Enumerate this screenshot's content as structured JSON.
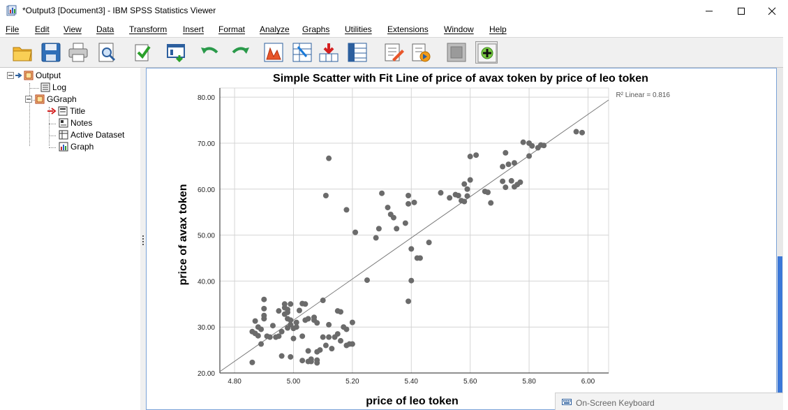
{
  "window": {
    "title": "*Output3 [Document3] - IBM SPSS Statistics Viewer"
  },
  "menu": [
    "File",
    "Edit",
    "View",
    "Data",
    "Transform",
    "Insert",
    "Format",
    "Analyze",
    "Graphs",
    "Utilities",
    "Extensions",
    "Window",
    "Help"
  ],
  "toolbar_icons": [
    "open-icon",
    "save-icon",
    "print-icon",
    "print-preview-icon",
    "export-icon",
    "recall-dialog-icon",
    "undo-icon",
    "redo-icon",
    "goto-data-icon",
    "goto-case-icon",
    "goto-variable-icon",
    "variables-icon",
    "select-cases-icon",
    "designate-window-icon",
    "hide-icon",
    "show-icon",
    "promote-icon"
  ],
  "outline": {
    "root": "Output",
    "log": "Log",
    "ggraph": "GGraph",
    "title": "Title",
    "notes": "Notes",
    "active_dataset": "Active Dataset",
    "graph": "Graph"
  },
  "chart_data": {
    "type": "scatter",
    "title": "Simple Scatter with Fit Line of price of avax token by price of leo token",
    "xlabel": "price of leo token",
    "ylabel": "price of avax token",
    "fit_label": "R² Linear = 0.816",
    "xlim": [
      4.75,
      6.07
    ],
    "ylim": [
      20,
      82
    ],
    "x_ticks": [
      "4.80",
      "5.00",
      "5.20",
      "5.40",
      "5.60",
      "5.80",
      "6.00"
    ],
    "y_ticks": [
      "20.00",
      "30.00",
      "40.00",
      "50.00",
      "60.00",
      "70.00",
      "80.00"
    ],
    "fit_line": {
      "x": [
        4.75,
        6.07
      ],
      "y": [
        20.3,
        79.4
      ]
    },
    "grid": true,
    "point_color": "#6b6b6b",
    "points": [
      [
        4.86,
        22.3
      ],
      [
        4.86,
        29.0
      ],
      [
        4.87,
        31.3
      ],
      [
        4.87,
        28.6
      ],
      [
        4.88,
        30.0
      ],
      [
        4.88,
        28.1
      ],
      [
        4.89,
        26.3
      ],
      [
        4.89,
        29.5
      ],
      [
        4.9,
        31.8
      ],
      [
        4.9,
        34.0
      ],
      [
        4.9,
        32.5
      ],
      [
        4.9,
        36.0
      ],
      [
        4.91,
        28.0
      ],
      [
        4.92,
        27.8
      ],
      [
        4.93,
        30.3
      ],
      [
        4.94,
        27.8
      ],
      [
        4.95,
        28.0
      ],
      [
        4.95,
        33.5
      ],
      [
        4.96,
        23.7
      ],
      [
        4.96,
        29.0
      ],
      [
        4.97,
        32.8
      ],
      [
        4.97,
        34.2
      ],
      [
        4.97,
        35.0
      ],
      [
        4.98,
        33.8
      ],
      [
        4.98,
        31.8
      ],
      [
        4.98,
        29.8
      ],
      [
        4.98,
        33.2
      ],
      [
        4.99,
        31.5
      ],
      [
        4.99,
        35.0
      ],
      [
        4.99,
        30.5
      ],
      [
        4.99,
        23.5
      ],
      [
        5.0,
        27.5
      ],
      [
        5.0,
        29.7
      ],
      [
        5.01,
        31.0
      ],
      [
        5.01,
        30.0
      ],
      [
        5.02,
        33.6
      ],
      [
        5.03,
        28.0
      ],
      [
        5.03,
        35.1
      ],
      [
        5.03,
        22.7
      ],
      [
        5.04,
        35.0
      ],
      [
        5.04,
        31.5
      ],
      [
        5.05,
        31.8
      ],
      [
        5.05,
        22.5
      ],
      [
        5.05,
        24.8
      ],
      [
        5.06,
        23.0
      ],
      [
        5.06,
        22.5
      ],
      [
        5.07,
        31.5
      ],
      [
        5.07,
        32.1
      ],
      [
        5.08,
        30.9
      ],
      [
        5.08,
        22.8
      ],
      [
        5.08,
        22.2
      ],
      [
        5.08,
        24.6
      ],
      [
        5.09,
        25.0
      ],
      [
        5.1,
        27.8
      ],
      [
        5.1,
        35.8
      ],
      [
        5.11,
        26.0
      ],
      [
        5.12,
        30.5
      ],
      [
        5.12,
        27.8
      ],
      [
        5.13,
        25.3
      ],
      [
        5.14,
        27.8
      ],
      [
        5.15,
        33.5
      ],
      [
        5.15,
        28.5
      ],
      [
        5.16,
        33.3
      ],
      [
        5.16,
        27.0
      ],
      [
        5.17,
        30.0
      ],
      [
        5.18,
        29.5
      ],
      [
        5.18,
        26.0
      ],
      [
        5.19,
        26.3
      ],
      [
        5.2,
        31.0
      ],
      [
        5.2,
        26.3
      ],
      [
        5.11,
        58.6
      ],
      [
        5.12,
        66.7
      ],
      [
        5.18,
        55.5
      ],
      [
        5.21,
        50.6
      ],
      [
        5.25,
        40.2
      ],
      [
        5.28,
        49.4
      ],
      [
        5.29,
        51.4
      ],
      [
        5.3,
        59.1
      ],
      [
        5.32,
        56.0
      ],
      [
        5.33,
        54.5
      ],
      [
        5.34,
        53.8
      ],
      [
        5.35,
        51.4
      ],
      [
        5.38,
        52.6
      ],
      [
        5.39,
        58.6
      ],
      [
        5.39,
        56.8
      ],
      [
        5.39,
        35.6
      ],
      [
        5.4,
        40.1
      ],
      [
        5.4,
        47.0
      ],
      [
        5.41,
        57.1
      ],
      [
        5.42,
        45.0
      ],
      [
        5.43,
        45.0
      ],
      [
        5.46,
        48.4
      ],
      [
        5.5,
        59.2
      ],
      [
        5.53,
        58.1
      ],
      [
        5.55,
        58.8
      ],
      [
        5.56,
        58.6
      ],
      [
        5.57,
        57.5
      ],
      [
        5.58,
        57.3
      ],
      [
        5.58,
        61.1
      ],
      [
        5.59,
        58.5
      ],
      [
        5.59,
        60.0
      ],
      [
        5.6,
        62.0
      ],
      [
        5.6,
        67.1
      ],
      [
        5.62,
        67.4
      ],
      [
        5.65,
        59.5
      ],
      [
        5.66,
        59.3
      ],
      [
        5.67,
        57.0
      ],
      [
        5.71,
        61.7
      ],
      [
        5.71,
        64.9
      ],
      [
        5.72,
        60.4
      ],
      [
        5.72,
        67.9
      ],
      [
        5.73,
        65.4
      ],
      [
        5.74,
        61.8
      ],
      [
        5.75,
        65.7
      ],
      [
        5.75,
        60.5
      ],
      [
        5.76,
        61.0
      ],
      [
        5.77,
        61.5
      ],
      [
        5.78,
        70.2
      ],
      [
        5.8,
        67.2
      ],
      [
        5.8,
        70.0
      ],
      [
        5.81,
        69.4
      ],
      [
        5.83,
        69.0
      ],
      [
        5.84,
        69.6
      ],
      [
        5.85,
        69.5
      ],
      [
        5.96,
        72.5
      ],
      [
        5.98,
        72.3
      ]
    ]
  },
  "osk": {
    "label": "On-Screen Keyboard"
  }
}
